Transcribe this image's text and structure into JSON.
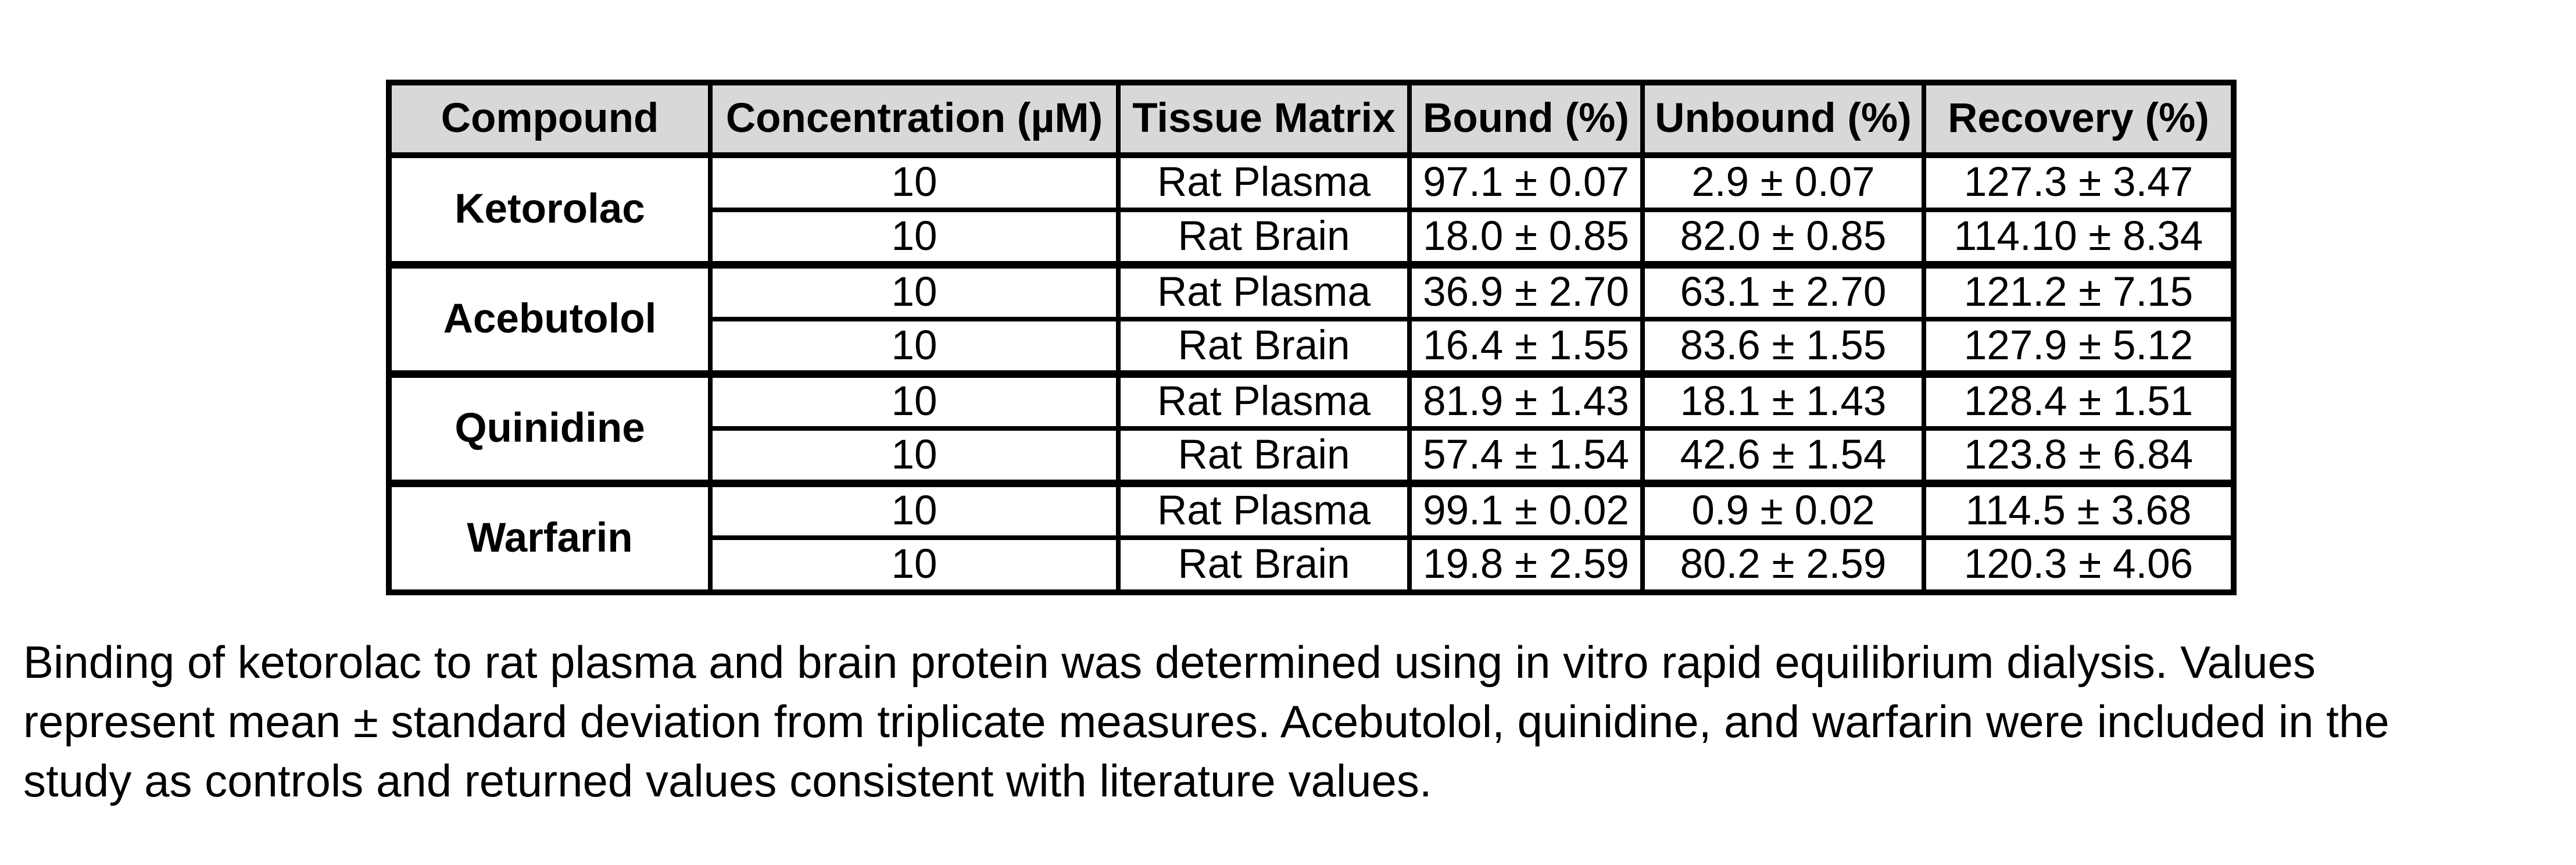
{
  "table": {
    "headers": {
      "compound": "Compound",
      "concentration": "Concentration (µM)",
      "matrix": "Tissue Matrix",
      "bound": "Bound (%)",
      "unbound": "Unbound (%)",
      "recovery": "Recovery (%)"
    },
    "groups": [
      {
        "compound": "Ketorolac",
        "rows": [
          {
            "concentration": "10",
            "matrix": "Rat Plasma",
            "bound": "97.1 ± 0.07",
            "unbound": "2.9 ± 0.07",
            "recovery": "127.3 ± 3.47"
          },
          {
            "concentration": "10",
            "matrix": "Rat Brain",
            "bound": "18.0 ± 0.85",
            "unbound": "82.0 ± 0.85",
            "recovery": "114.10 ± 8.34"
          }
        ]
      },
      {
        "compound": "Acebutolol",
        "rows": [
          {
            "concentration": "10",
            "matrix": "Rat Plasma",
            "bound": "36.9 ± 2.70",
            "unbound": "63.1 ± 2.70",
            "recovery": "121.2 ± 7.15"
          },
          {
            "concentration": "10",
            "matrix": "Rat Brain",
            "bound": "16.4 ± 1.55",
            "unbound": "83.6 ± 1.55",
            "recovery": "127.9 ± 5.12"
          }
        ]
      },
      {
        "compound": "Quinidine",
        "rows": [
          {
            "concentration": "10",
            "matrix": "Rat Plasma",
            "bound": "81.9 ± 1.43",
            "unbound": "18.1 ± 1.43",
            "recovery": "128.4 ± 1.51"
          },
          {
            "concentration": "10",
            "matrix": "Rat Brain",
            "bound": "57.4 ± 1.54",
            "unbound": "42.6 ± 1.54",
            "recovery": "123.8 ± 6.84"
          }
        ]
      },
      {
        "compound": "Warfarin",
        "rows": [
          {
            "concentration": "10",
            "matrix": "Rat Plasma",
            "bound": "99.1 ± 0.02",
            "unbound": "0.9 ± 0.02",
            "recovery": "114.5 ± 3.68"
          },
          {
            "concentration": "10",
            "matrix": "Rat Brain",
            "bound": "19.8 ± 2.59",
            "unbound": "80.2 ± 2.59",
            "recovery": "120.3 ± 4.06"
          }
        ]
      }
    ]
  },
  "caption": {
    "lines": [
      "Binding of ketorolac to rat plasma and brain protein was determined using in vitro rapid equilibrium dialysis. Values",
      "represent mean ± standard deviation from triplicate measures. Acebutolol, quinidine, and warfarin were included in the",
      "study as controls and returned values consistent with literature values."
    ],
    "full_text": "Binding of ketorolac to rat plasma and brain protein was determined using in vitro rapid equilibrium dialysis. Values represent mean ± standard deviation from triplicate measures. Acebutolol, quinidine, and warfarin were included in the study as controls and returned values consistent with literature values."
  },
  "colors": {
    "header_bg": "#d8d8d8",
    "border": "#000000",
    "text": "#000000",
    "background": "#ffffff"
  }
}
